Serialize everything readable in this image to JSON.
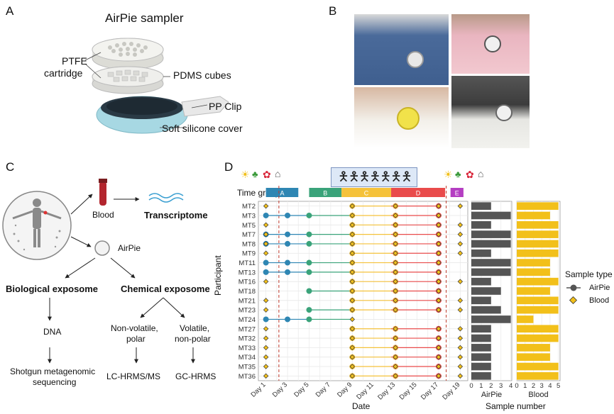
{
  "panelA": {
    "letter": "A",
    "title": "AirPie sampler",
    "labels": {
      "cartridge_line1": "PTFE",
      "cartridge_line2": "cartridge",
      "cubes": "PDMS cubes",
      "clip": "PP Clip",
      "cover": "Soft silicone cover"
    }
  },
  "panelB": {
    "letter": "B"
  },
  "panelC": {
    "letter": "C",
    "blood": "Blood",
    "transcriptome": "Transcriptome",
    "airpie": "AirPie",
    "bio": "Biological exposome",
    "chem": "Chemical exposome",
    "dna": "DNA",
    "shotgun_line1": "Shotgun metagenomic",
    "shotgun_line2": "sequencing",
    "nonvol_line1": "Non-volatile,",
    "nonvol_line2": "polar",
    "vol_line1": "Volatile,",
    "vol_line2": "non-polar",
    "lc": "LC-HRMS/MS",
    "gc": "GC-HRMS"
  },
  "panelD": {
    "letter": "D",
    "time_group_label": "Time group",
    "y_axis_label": "Participant",
    "x_axis_label": "Date",
    "sample_number_label": "Sample number",
    "legend_title": "Sample type",
    "legend_items": [
      "AirPie",
      "Blood"
    ],
    "panel_airpie_label": "AirPie",
    "panel_blood_label": "Blood"
  },
  "chart_data": [
    {
      "type": "scatter",
      "title": "",
      "xlabel": "Date",
      "ylabel": "Participant",
      "x_ticks": [
        "Day 1",
        "Day 3",
        "Day 5",
        "Day 7",
        "Day 9",
        "Day 11",
        "Day 13",
        "Day 15",
        "Day 17",
        "Day 19"
      ],
      "x_range": [
        0.3,
        19.7
      ],
      "vlines_dashed": [
        2.2,
        17.7
      ],
      "time_groups": [
        {
          "name": "A",
          "start": 1,
          "end": 4,
          "color": "#2e86b3"
        },
        {
          "name": "B",
          "start": 5,
          "end": 8,
          "color": "#3aa37a"
        },
        {
          "name": "C",
          "start": 8,
          "end": 12.6,
          "color": "#f5c23a"
        },
        {
          "name": "D",
          "start": 12.6,
          "end": 17.6,
          "color": "#e94b4b"
        },
        {
          "name": "E",
          "start": 18.1,
          "end": 19.3,
          "color": "#b43ec2"
        }
      ],
      "participants": [
        "MT2",
        "MT3",
        "MT5",
        "MT7",
        "MT8",
        "MT9",
        "MT11",
        "MT13",
        "MT16",
        "MT18",
        "MT21",
        "MT23",
        "MT24",
        "MT27",
        "MT32",
        "MT33",
        "MT34",
        "MT35",
        "MT36"
      ],
      "airpie_points": {
        "MT3": [
          1,
          3,
          5
        ],
        "MT7": [
          1,
          3,
          5
        ],
        "MT8": [
          1,
          3,
          5
        ],
        "MT11": [
          1,
          3,
          5
        ],
        "MT13": [
          1,
          3,
          5
        ],
        "MT18": [
          5
        ],
        "MT23": [
          5
        ],
        "MT24": [
          1,
          3,
          5
        ]
      },
      "blood_points": {
        "MT2": [
          1,
          9,
          13,
          17
        ],
        "MT3": [
          9,
          13,
          17
        ],
        "MT5": [
          1,
          9,
          13,
          17
        ],
        "MT7": [
          1,
          9,
          13,
          17
        ],
        "MT8": [
          1,
          9,
          13,
          17
        ],
        "MT9": [
          1,
          9,
          13,
          17
        ],
        "MT11": [
          9,
          13,
          17
        ],
        "MT13": [
          9,
          13,
          17
        ],
        "MT16": [
          1,
          9,
          13,
          17
        ],
        "MT18": [
          9,
          13,
          17
        ],
        "MT21": [
          1,
          9,
          13,
          17
        ],
        "MT23": [
          1,
          9,
          13,
          17
        ],
        "MT24": [
          9
        ],
        "MT27": [
          1,
          9,
          13,
          17
        ],
        "MT32": [
          1,
          9,
          13,
          17
        ],
        "MT33": [
          1,
          9,
          13,
          17
        ],
        "MT34": [
          1,
          9,
          13,
          17
        ],
        "MT35": [
          1,
          9,
          13,
          17
        ],
        "MT36": [
          1,
          9,
          13,
          17
        ]
      },
      "series": [
        {
          "name": "AirPie",
          "color": "#555555"
        },
        {
          "name": "Blood",
          "color": "#f2c01a"
        }
      ]
    },
    {
      "type": "bar",
      "orientation": "horizontal",
      "xlabel": "AirPie",
      "x_ticks": [
        0,
        1,
        2,
        3,
        4
      ],
      "xlim": [
        0,
        4.1
      ],
      "categories": [
        "MT2",
        "MT3",
        "MT5",
        "MT7",
        "MT8",
        "MT9",
        "MT11",
        "MT13",
        "MT16",
        "MT18",
        "MT21",
        "MT23",
        "MT24",
        "MT27",
        "MT32",
        "MT33",
        "MT34",
        "MT35",
        "MT36"
      ],
      "values": [
        2,
        4,
        2,
        4,
        4,
        2,
        4,
        4,
        2,
        3,
        2,
        3,
        4,
        2,
        2,
        2,
        2,
        2,
        2
      ],
      "color": "#555555"
    },
    {
      "type": "bar",
      "orientation": "horizontal",
      "xlabel": "Blood",
      "x_ticks": [
        0,
        1,
        2,
        3,
        4,
        5
      ],
      "xlim": [
        0,
        5.2
      ],
      "categories": [
        "MT2",
        "MT3",
        "MT5",
        "MT7",
        "MT8",
        "MT9",
        "MT11",
        "MT13",
        "MT16",
        "MT18",
        "MT21",
        "MT23",
        "MT24",
        "MT27",
        "MT32",
        "MT33",
        "MT34",
        "MT35",
        "MT36"
      ],
      "values": [
        5,
        4,
        5,
        5,
        5,
        5,
        4,
        4,
        5,
        4,
        5,
        5,
        2,
        5,
        5,
        4,
        4,
        5,
        5
      ],
      "color": "#f2c01a"
    }
  ]
}
